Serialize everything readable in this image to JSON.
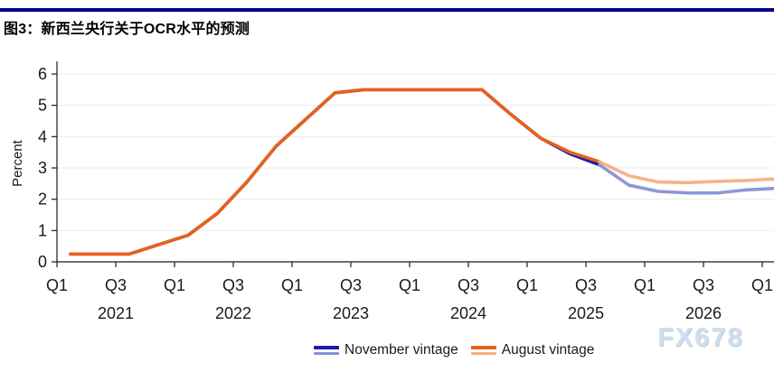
{
  "header": {
    "title": "图3：新西兰央行关于OCR水平的预测",
    "rule_color": "#000089"
  },
  "watermark": "FX678",
  "chart_data": {
    "type": "line",
    "title": "图3：新西兰央行关于OCR水平的预测",
    "xlabel": "",
    "ylabel": "Percent",
    "ylim": [
      0,
      6
    ],
    "yticks": [
      0,
      1,
      2,
      3,
      4,
      5,
      6
    ],
    "grid": "horizontal-light",
    "legend_position": "bottom",
    "categories": [
      "2021 Q1",
      "2021 Q2",
      "2021 Q3",
      "2021 Q4",
      "2022 Q1",
      "2022 Q2",
      "2022 Q3",
      "2022 Q4",
      "2023 Q1",
      "2023 Q2",
      "2023 Q3",
      "2023 Q4",
      "2024 Q1",
      "2024 Q2",
      "2024 Q3",
      "2024 Q4",
      "2025 Q1",
      "2025 Q2",
      "2025 Q3",
      "2025 Q4",
      "2026 Q1",
      "2026 Q2",
      "2026 Q3",
      "2026 Q4",
      "2027 Q1"
    ],
    "xtick_labels": [
      "Q1",
      "Q3",
      "Q1",
      "Q3",
      "Q1",
      "Q3",
      "Q1",
      "Q3",
      "Q1",
      "Q3",
      "Q1",
      "Q3",
      "Q1"
    ],
    "year_labels": [
      "2021",
      "2022",
      "2023",
      "2024",
      "2025",
      "2026"
    ],
    "series": [
      {
        "name": "November vintage",
        "history_color": "#1b1bb3",
        "forecast_color": "#8791d6",
        "forecast_start_index": 18,
        "values": [
          0.25,
          0.25,
          0.25,
          0.55,
          0.85,
          1.55,
          2.55,
          3.7,
          4.55,
          5.4,
          5.5,
          5.5,
          5.5,
          5.5,
          5.5,
          4.7,
          3.95,
          3.45,
          3.1,
          2.45,
          2.25,
          2.2,
          2.2,
          2.3,
          2.35
        ]
      },
      {
        "name": "August vintage",
        "history_color": "#e8611c",
        "forecast_color": "#f6ae80",
        "forecast_start_index": 18,
        "values": [
          0.25,
          0.25,
          0.25,
          0.55,
          0.85,
          1.55,
          2.55,
          3.7,
          4.55,
          5.4,
          5.5,
          5.5,
          5.5,
          5.5,
          5.5,
          4.7,
          3.95,
          3.5,
          3.2,
          2.75,
          2.55,
          2.53,
          2.57,
          2.6,
          2.65
        ]
      }
    ]
  }
}
